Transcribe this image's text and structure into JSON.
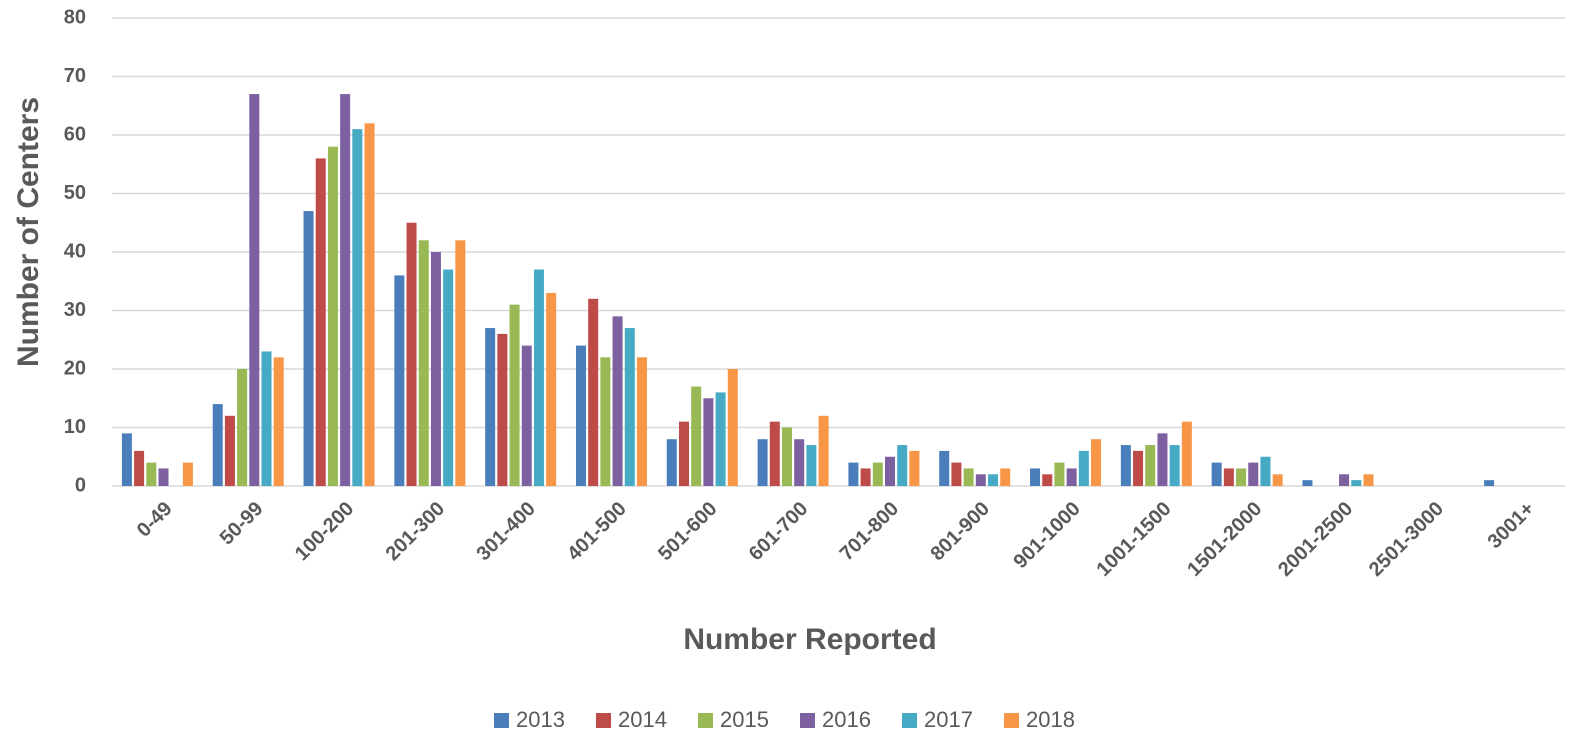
{
  "chart_data": {
    "type": "bar",
    "x_label": "Number Reported",
    "y_label": "Number of Centers",
    "categories": [
      "0-49",
      "50-99",
      "100-200",
      "201-300",
      "301-400",
      "401-500",
      "501-600",
      "601-700",
      "701-800",
      "801-900",
      "901-1000",
      "1001-1500",
      "1501-2000",
      "2001-2500",
      "2501-3000",
      "3001+"
    ],
    "series": [
      {
        "name": "2013",
        "color": "#4a7ebb",
        "values": [
          9,
          14,
          47,
          36,
          27,
          24,
          8,
          8,
          4,
          6,
          3,
          7,
          4,
          1,
          0,
          1
        ]
      },
      {
        "name": "2014",
        "color": "#be4b48",
        "values": [
          6,
          12,
          56,
          45,
          26,
          32,
          11,
          11,
          3,
          4,
          2,
          6,
          3,
          0,
          0,
          0
        ]
      },
      {
        "name": "2015",
        "color": "#98b954",
        "values": [
          4,
          20,
          58,
          42,
          31,
          22,
          17,
          10,
          4,
          3,
          4,
          7,
          3,
          0,
          0,
          0
        ]
      },
      {
        "name": "2016",
        "color": "#7d60a0",
        "values": [
          3,
          67,
          67,
          40,
          24,
          29,
          15,
          8,
          5,
          2,
          3,
          9,
          4,
          2,
          0,
          0
        ]
      },
      {
        "name": "2017",
        "color": "#46aac5",
        "values": [
          0,
          23,
          61,
          37,
          37,
          27,
          16,
          7,
          7,
          2,
          6,
          7,
          5,
          1,
          0,
          0
        ]
      },
      {
        "name": "2018",
        "color": "#f79646",
        "values": [
          4,
          22,
          62,
          42,
          33,
          22,
          20,
          12,
          6,
          3,
          8,
          11,
          2,
          2,
          0,
          0
        ]
      }
    ],
    "ylim": [
      0,
      80
    ],
    "yticks": [
      0,
      10,
      20,
      30,
      40,
      50,
      60,
      70,
      80
    ],
    "grid": true,
    "legend": "bottom"
  }
}
